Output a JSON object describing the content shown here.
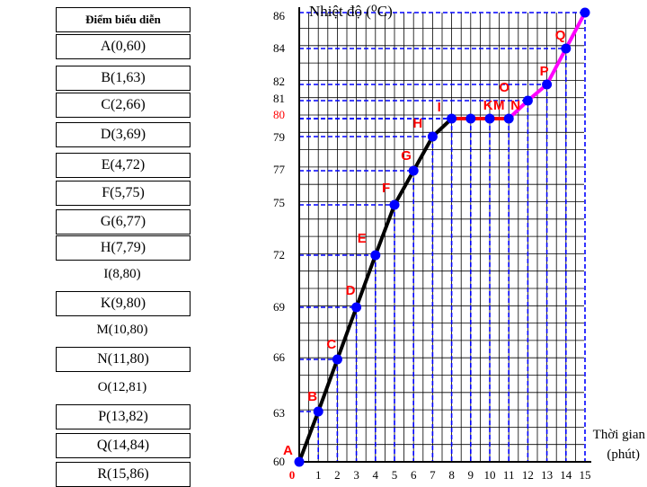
{
  "points_table": {
    "header": "Điểm biểu diễn",
    "rows": [
      "A(0,60)",
      "B(1,63)",
      "C(2,66)",
      "D(3,69)",
      "E(4,72)",
      "F(5,75)",
      "G(6,77)",
      "H(7,79)",
      "I(8,80)",
      "K(9,80)",
      "M(10,80)",
      "N(11,80)",
      "O(12,81)",
      "P(13,82)",
      "Q(14,84)",
      "R(15,86)"
    ]
  },
  "chart_data": {
    "type": "line",
    "title": "Nhiệt độ (⁰C)",
    "xlabel": "Thời gian (phút)",
    "ylabel": "Nhiệt độ (⁰C)",
    "x_ticks": [
      "0",
      "1",
      "2",
      "3",
      "4",
      "5",
      "6",
      "7",
      "8",
      "9",
      "10",
      "11",
      "12",
      "13",
      "14",
      "15"
    ],
    "y_ticks": [
      "60",
      "63",
      "66",
      "69",
      "72",
      "75",
      "77",
      "79",
      "80",
      "81",
      "82",
      "84",
      "86"
    ],
    "xlim": [
      0,
      15
    ],
    "ylim": [
      60,
      86
    ],
    "points": [
      {
        "label": "A",
        "x": 0,
        "y": 60
      },
      {
        "label": "B",
        "x": 1,
        "y": 63
      },
      {
        "label": "C",
        "x": 2,
        "y": 66
      },
      {
        "label": "D",
        "x": 3,
        "y": 69
      },
      {
        "label": "E",
        "x": 4,
        "y": 72
      },
      {
        "label": "F",
        "x": 5,
        "y": 75
      },
      {
        "label": "G",
        "x": 6,
        "y": 77
      },
      {
        "label": "H",
        "x": 7,
        "y": 79
      },
      {
        "label": "I",
        "x": 8,
        "y": 80
      },
      {
        "label": "K",
        "x": 9,
        "y": 80
      },
      {
        "label": "M",
        "x": 10,
        "y": 80
      },
      {
        "label": "N",
        "x": 11,
        "y": 80
      },
      {
        "label": "O",
        "x": 12,
        "y": 81
      },
      {
        "label": "P",
        "x": 13,
        "y": 82
      },
      {
        "label": "Q",
        "x": 14,
        "y": 84
      },
      {
        "label": "R",
        "x": 15,
        "y": 86
      }
    ],
    "segments": [
      {
        "from": 0,
        "to": 8,
        "color": "#000000"
      },
      {
        "from": 8,
        "to": 11,
        "color": "#ff0000"
      },
      {
        "from": 11,
        "to": 15,
        "color": "#ff00ff"
      }
    ],
    "grid": true,
    "colors": {
      "point_fill": "#0000ff",
      "point_label": "#ff0000",
      "grid": "#000000",
      "dash_guides": "#0000ff",
      "highlight_tick": "#ff0000"
    },
    "highlight_tick_y": "80"
  }
}
